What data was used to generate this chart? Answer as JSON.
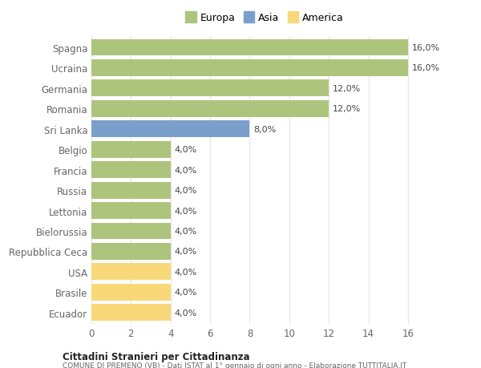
{
  "countries": [
    "Spagna",
    "Ucraina",
    "Germania",
    "Romania",
    "Sri Lanka",
    "Belgio",
    "Francia",
    "Russia",
    "Lettonia",
    "Bielorussia",
    "Repubblica Ceca",
    "USA",
    "Brasile",
    "Ecuador"
  ],
  "values": [
    16.0,
    16.0,
    12.0,
    12.0,
    8.0,
    4.0,
    4.0,
    4.0,
    4.0,
    4.0,
    4.0,
    4.0,
    4.0,
    4.0
  ],
  "continents": [
    "Europa",
    "Europa",
    "Europa",
    "Europa",
    "Asia",
    "Europa",
    "Europa",
    "Europa",
    "Europa",
    "Europa",
    "Europa",
    "America",
    "America",
    "America"
  ],
  "colors": {
    "Europa": "#adc47d",
    "Asia": "#7b9fcc",
    "America": "#f8d878"
  },
  "legend_order": [
    "Europa",
    "Asia",
    "America"
  ],
  "legend_colors": [
    "#adc47d",
    "#7b9fcc",
    "#f8d878"
  ],
  "xlim": [
    0,
    17.5
  ],
  "xticks": [
    0,
    2,
    4,
    6,
    8,
    10,
    12,
    14,
    16
  ],
  "background_color": "#ffffff",
  "plot_bg_color": "#ffffff",
  "grid_color": "#e8e8e8",
  "title_main": "Cittadini Stranieri per Cittadinanza",
  "title_sub": "COMUNE DI PREMENO (VB) - Dati ISTAT al 1° gennaio di ogni anno - Elaborazione TUTTITALIA.IT",
  "label_color": "#666666",
  "value_color": "#444444",
  "bar_height": 0.82
}
